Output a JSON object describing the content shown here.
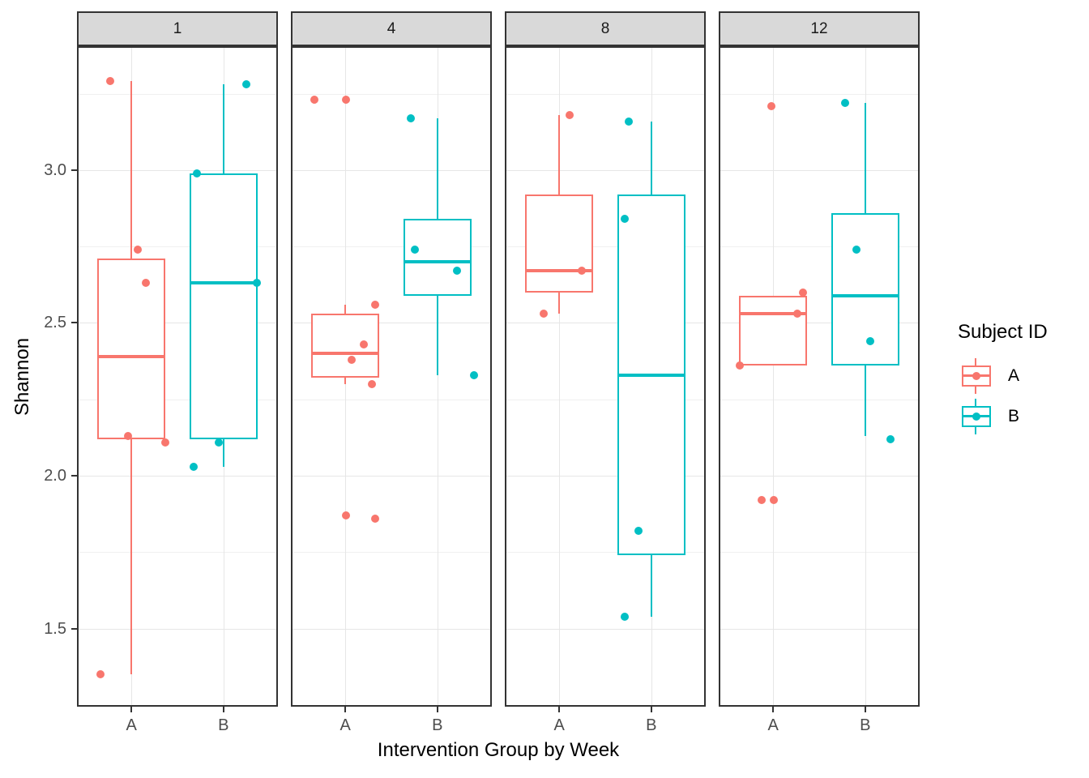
{
  "chart_data": {
    "type": "boxplot",
    "title": "",
    "xlabel": "Intervention Group by Week",
    "ylabel": "Shannon",
    "x_categories": [
      "A",
      "B"
    ],
    "x_positions": {
      "A": 0.267,
      "B": 0.733
    },
    "box_width_frac": 0.345,
    "y_ticks": [
      {
        "label": "1.5",
        "value": 1.5
      },
      {
        "label": "2.0",
        "value": 2.0
      },
      {
        "label": "2.5",
        "value": 2.5
      },
      {
        "label": "3.0",
        "value": 3.0
      }
    ],
    "y_minor": [
      1.75,
      2.25,
      2.75,
      3.25
    ],
    "ylim": [
      1.25,
      3.4
    ],
    "grid": true,
    "legend": {
      "title": "Subject ID",
      "position": "right",
      "entries": [
        {
          "label": "A",
          "color": "#F8766D"
        },
        {
          "label": "B",
          "color": "#00BFC4"
        }
      ]
    },
    "colors": {
      "A": "#F8766D",
      "B": "#00BFC4"
    },
    "facets": [
      {
        "label": "1",
        "boxes": [
          {
            "group": "A",
            "q1": 2.12,
            "median": 2.39,
            "q3": 2.71,
            "whisker_low": 1.35,
            "whisker_high": 3.29,
            "points": [
              [
                0.16,
                3.29
              ],
              [
                0.3,
                2.74
              ],
              [
                0.34,
                2.63
              ],
              [
                0.25,
                2.13
              ],
              [
                0.44,
                2.11
              ],
              [
                0.11,
                1.35
              ]
            ]
          },
          {
            "group": "B",
            "q1": 2.12,
            "median": 2.63,
            "q3": 2.99,
            "whisker_low": 2.03,
            "whisker_high": 3.28,
            "points": [
              [
                0.85,
                3.28
              ],
              [
                0.6,
                2.99
              ],
              [
                0.9,
                2.63
              ],
              [
                0.71,
                2.11
              ],
              [
                0.58,
                2.03
              ]
            ]
          }
        ]
      },
      {
        "label": "4",
        "boxes": [
          {
            "group": "A",
            "q1": 2.32,
            "median": 2.4,
            "q3": 2.53,
            "whisker_low": 2.3,
            "whisker_high": 2.56,
            "points": [
              [
                0.11,
                3.23
              ],
              [
                0.27,
                3.23
              ],
              [
                0.42,
                2.56
              ],
              [
                0.36,
                2.43
              ],
              [
                0.3,
                2.38
              ],
              [
                0.4,
                2.3
              ],
              [
                0.27,
                1.87
              ],
              [
                0.42,
                1.86
              ]
            ]
          },
          {
            "group": "B",
            "q1": 2.59,
            "median": 2.7,
            "q3": 2.84,
            "whisker_low": 2.33,
            "whisker_high": 3.17,
            "points": [
              [
                0.6,
                3.17
              ],
              [
                0.62,
                2.74
              ],
              [
                0.83,
                2.67
              ],
              [
                0.92,
                2.33
              ]
            ]
          }
        ]
      },
      {
        "label": "8",
        "boxes": [
          {
            "group": "A",
            "q1": 2.6,
            "median": 2.67,
            "q3": 2.92,
            "whisker_low": 2.53,
            "whisker_high": 3.18,
            "points": [
              [
                0.32,
                3.18
              ],
              [
                0.38,
                2.67
              ],
              [
                0.19,
                2.53
              ]
            ]
          },
          {
            "group": "B",
            "q1": 1.74,
            "median": 2.33,
            "q3": 2.92,
            "whisker_low": 1.54,
            "whisker_high": 3.16,
            "points": [
              [
                0.62,
                3.16
              ],
              [
                0.6,
                2.84
              ],
              [
                0.67,
                1.82
              ],
              [
                0.6,
                1.54
              ]
            ]
          }
        ]
      },
      {
        "label": "12",
        "boxes": [
          {
            "group": "A",
            "q1": 2.36,
            "median": 2.53,
            "q3": 2.59,
            "whisker_low": 2.36,
            "whisker_high": 2.59,
            "points": [
              [
                0.26,
                3.21
              ],
              [
                0.42,
                2.6
              ],
              [
                0.39,
                2.53
              ],
              [
                0.1,
                2.36
              ],
              [
                0.21,
                1.92
              ],
              [
                0.27,
                1.92
              ]
            ]
          },
          {
            "group": "B",
            "q1": 2.36,
            "median": 2.59,
            "q3": 2.86,
            "whisker_low": 2.13,
            "whisker_high": 3.22,
            "points": [
              [
                0.63,
                3.22
              ],
              [
                0.69,
                2.74
              ],
              [
                0.76,
                2.44
              ],
              [
                0.86,
                2.12
              ]
            ]
          }
        ]
      }
    ]
  }
}
